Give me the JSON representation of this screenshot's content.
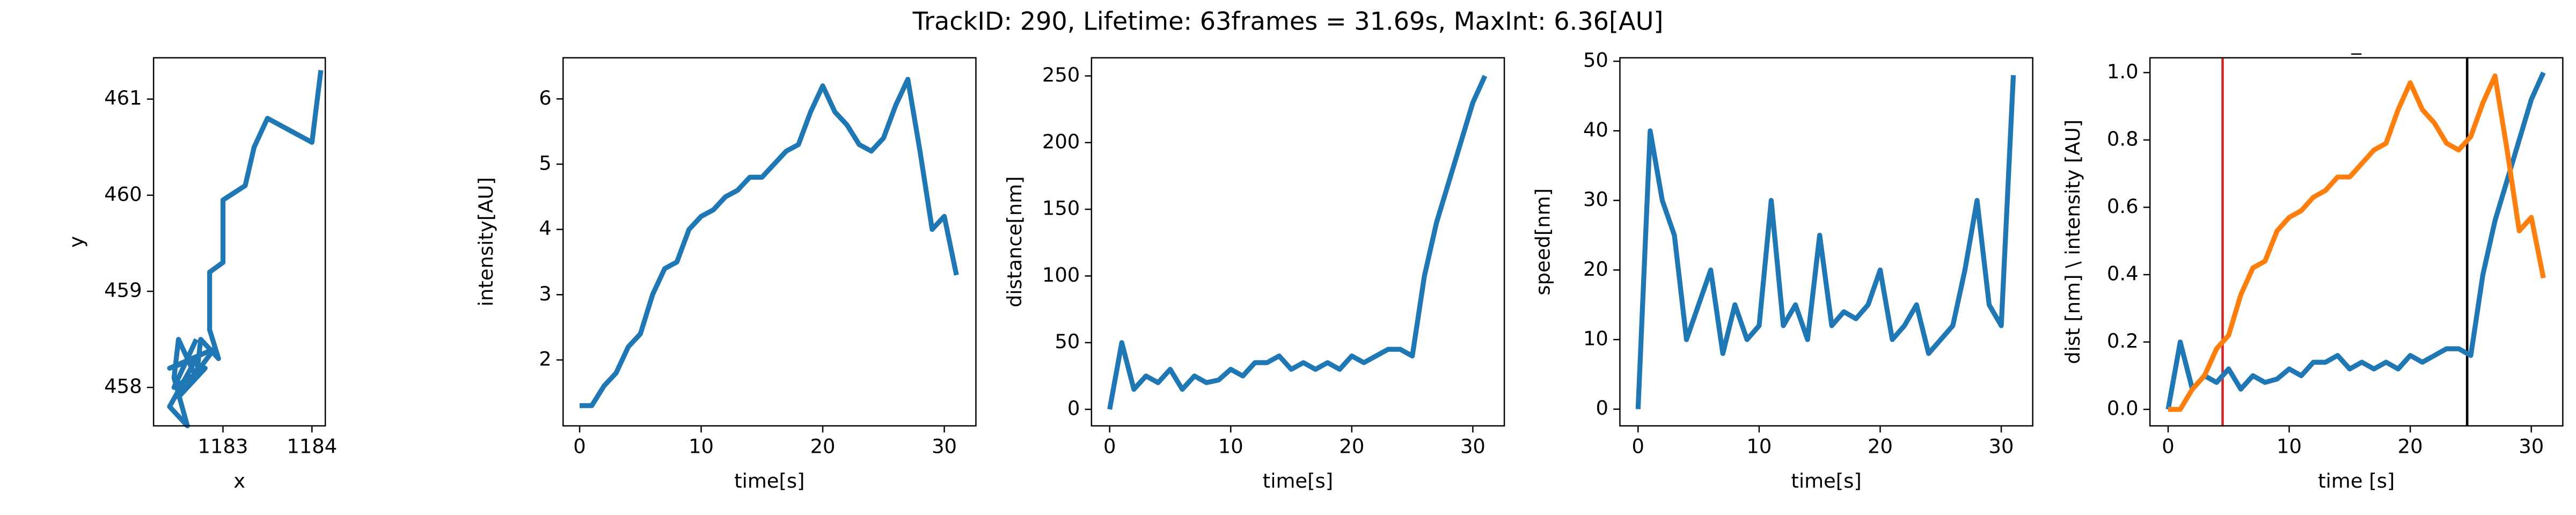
{
  "title": "TrackID: 290, Lifetime: 63frames = 31.69s, MaxInt: 6.36[AU]",
  "chart_data": [
    {
      "type": "line",
      "xlabel": "x",
      "ylabel": "y",
      "xlim": [
        1182.22,
        1184.15
      ],
      "ylim": [
        457.6,
        461.43
      ],
      "xticks": [
        1183,
        1184
      ],
      "yticks": [
        458,
        459,
        460,
        461
      ],
      "series": [
        {
          "color": "#1f77b4",
          "x": [
            1184.1,
            1184.0,
            1183.5,
            1183.35,
            1183.25,
            1183.0,
            1183.0,
            1182.85,
            1182.85,
            1182.95,
            1182.75,
            1182.7,
            1182.5,
            1182.45,
            1182.6,
            1182.4,
            1182.7,
            1182.4,
            1182.9,
            1182.5,
            1182.8,
            1182.45,
            1182.7
          ],
          "values": [
            461.3,
            460.55,
            460.8,
            460.5,
            460.1,
            459.95,
            459.3,
            459.2,
            458.6,
            458.3,
            458.5,
            458.1,
            458.5,
            458.1,
            457.6,
            457.8,
            458.3,
            458.2,
            458.4,
            457.9,
            458.2,
            458.0,
            458.5
          ]
        }
      ]
    },
    {
      "type": "line",
      "xlabel": "time[s]",
      "ylabel": "intensity[AU]",
      "xlim": [
        -1.36,
        32.6
      ],
      "ylim": [
        0.99,
        6.63
      ],
      "xticks": [
        0,
        10,
        20,
        30
      ],
      "yticks": [
        2,
        3,
        4,
        5,
        6
      ],
      "series": [
        {
          "color": "#1f77b4",
          "x": [
            0,
            1,
            2,
            3,
            4,
            5,
            6,
            7,
            8,
            9,
            10,
            11,
            12,
            13,
            14,
            15,
            16,
            17,
            18,
            19,
            20,
            21,
            22,
            23,
            24,
            25,
            26,
            27,
            28,
            29,
            30,
            31
          ],
          "values": [
            1.3,
            1.3,
            1.6,
            1.8,
            2.2,
            2.4,
            3.0,
            3.4,
            3.5,
            4.0,
            4.2,
            4.3,
            4.5,
            4.6,
            4.8,
            4.8,
            5.0,
            5.2,
            5.3,
            5.8,
            6.2,
            5.8,
            5.6,
            5.3,
            5.2,
            5.4,
            5.9,
            6.3,
            5.2,
            4.0,
            4.2,
            3.3
          ]
        }
      ]
    },
    {
      "type": "line",
      "xlabel": "time[s]",
      "ylabel": "distance[nm]",
      "xlim": [
        -1.5,
        32.6
      ],
      "ylim": [
        -12.4,
        263.6
      ],
      "xticks": [
        0,
        10,
        20,
        30
      ],
      "yticks": [
        0,
        50,
        100,
        150,
        200,
        250
      ],
      "series": [
        {
          "color": "#1f77b4",
          "x": [
            0,
            1,
            2,
            3,
            4,
            5,
            6,
            7,
            8,
            9,
            10,
            11,
            12,
            13,
            14,
            15,
            16,
            17,
            18,
            19,
            20,
            21,
            22,
            23,
            24,
            25,
            26,
            27,
            28,
            29,
            30,
            31
          ],
          "values": [
            0,
            50,
            15,
            25,
            20,
            30,
            15,
            25,
            20,
            22,
            30,
            25,
            35,
            35,
            40,
            30,
            35,
            30,
            35,
            30,
            40,
            35,
            40,
            45,
            45,
            40,
            100,
            140,
            170,
            200,
            230,
            250
          ]
        }
      ]
    },
    {
      "type": "line",
      "xlabel": "time[s]",
      "ylabel": "speed[nm]",
      "xlim": [
        -1.5,
        32.6
      ],
      "ylim": [
        -2.4,
        50.5
      ],
      "xticks": [
        0,
        10,
        20,
        30
      ],
      "yticks": [
        0,
        10,
        20,
        30,
        40,
        50
      ],
      "series": [
        {
          "color": "#1f77b4",
          "x": [
            0,
            1,
            2,
            3,
            4,
            5,
            6,
            7,
            8,
            9,
            10,
            11,
            12,
            13,
            14,
            15,
            16,
            17,
            18,
            19,
            20,
            21,
            22,
            23,
            24,
            25,
            26,
            27,
            28,
            29,
            30,
            31
          ],
          "values": [
            0,
            40,
            30,
            25,
            10,
            15,
            20,
            8,
            15,
            10,
            12,
            30,
            12,
            15,
            10,
            25,
            12,
            14,
            13,
            15,
            20,
            10,
            12,
            15,
            8,
            10,
            12,
            20,
            30,
            15,
            12,
            48
          ]
        }
      ]
    },
    {
      "type": "line",
      "title": "_",
      "xlabel": "time [s]",
      "ylabel": "dist [nm] \\ intensity [AU]",
      "xlim": [
        -1.5,
        32.6
      ],
      "ylim": [
        -0.049,
        1.044
      ],
      "xticks": [
        0,
        10,
        20,
        30
      ],
      "yticks": [
        {
          "value": 0,
          "label": "0.0"
        },
        0.2,
        0.4,
        0.6,
        0.8,
        {
          "value": 1,
          "label": "1.0"
        }
      ],
      "vlines": [
        {
          "value": 4.5,
          "color": "#d62728"
        },
        {
          "value": 24.7,
          "color": "#000000"
        }
      ],
      "series": [
        {
          "color": "#1f77b4",
          "x": [
            0,
            1,
            2,
            3,
            4,
            5,
            6,
            7,
            8,
            9,
            10,
            11,
            12,
            13,
            14,
            15,
            16,
            17,
            18,
            19,
            20,
            21,
            22,
            23,
            24,
            25,
            26,
            27,
            28,
            29,
            30,
            31
          ],
          "values": [
            0,
            0.2,
            0.06,
            0.1,
            0.08,
            0.12,
            0.06,
            0.1,
            0.08,
            0.09,
            0.12,
            0.1,
            0.14,
            0.14,
            0.16,
            0.12,
            0.14,
            0.12,
            0.14,
            0.12,
            0.16,
            0.14,
            0.16,
            0.18,
            0.18,
            0.16,
            0.4,
            0.56,
            0.68,
            0.8,
            0.92,
            1.0
          ]
        },
        {
          "color": "#ff7f0e",
          "x": [
            0,
            1,
            2,
            3,
            4,
            5,
            6,
            7,
            8,
            9,
            10,
            11,
            12,
            13,
            14,
            15,
            16,
            17,
            18,
            19,
            20,
            21,
            22,
            23,
            24,
            25,
            26,
            27,
            28,
            29,
            30,
            31
          ],
          "values": [
            0,
            0,
            0.06,
            0.1,
            0.18,
            0.22,
            0.34,
            0.42,
            0.44,
            0.53,
            0.57,
            0.59,
            0.63,
            0.65,
            0.69,
            0.69,
            0.73,
            0.77,
            0.79,
            0.89,
            0.97,
            0.89,
            0.85,
            0.79,
            0.77,
            0.81,
            0.91,
            0.99,
            0.77,
            0.53,
            0.57,
            0.39
          ]
        }
      ]
    }
  ]
}
